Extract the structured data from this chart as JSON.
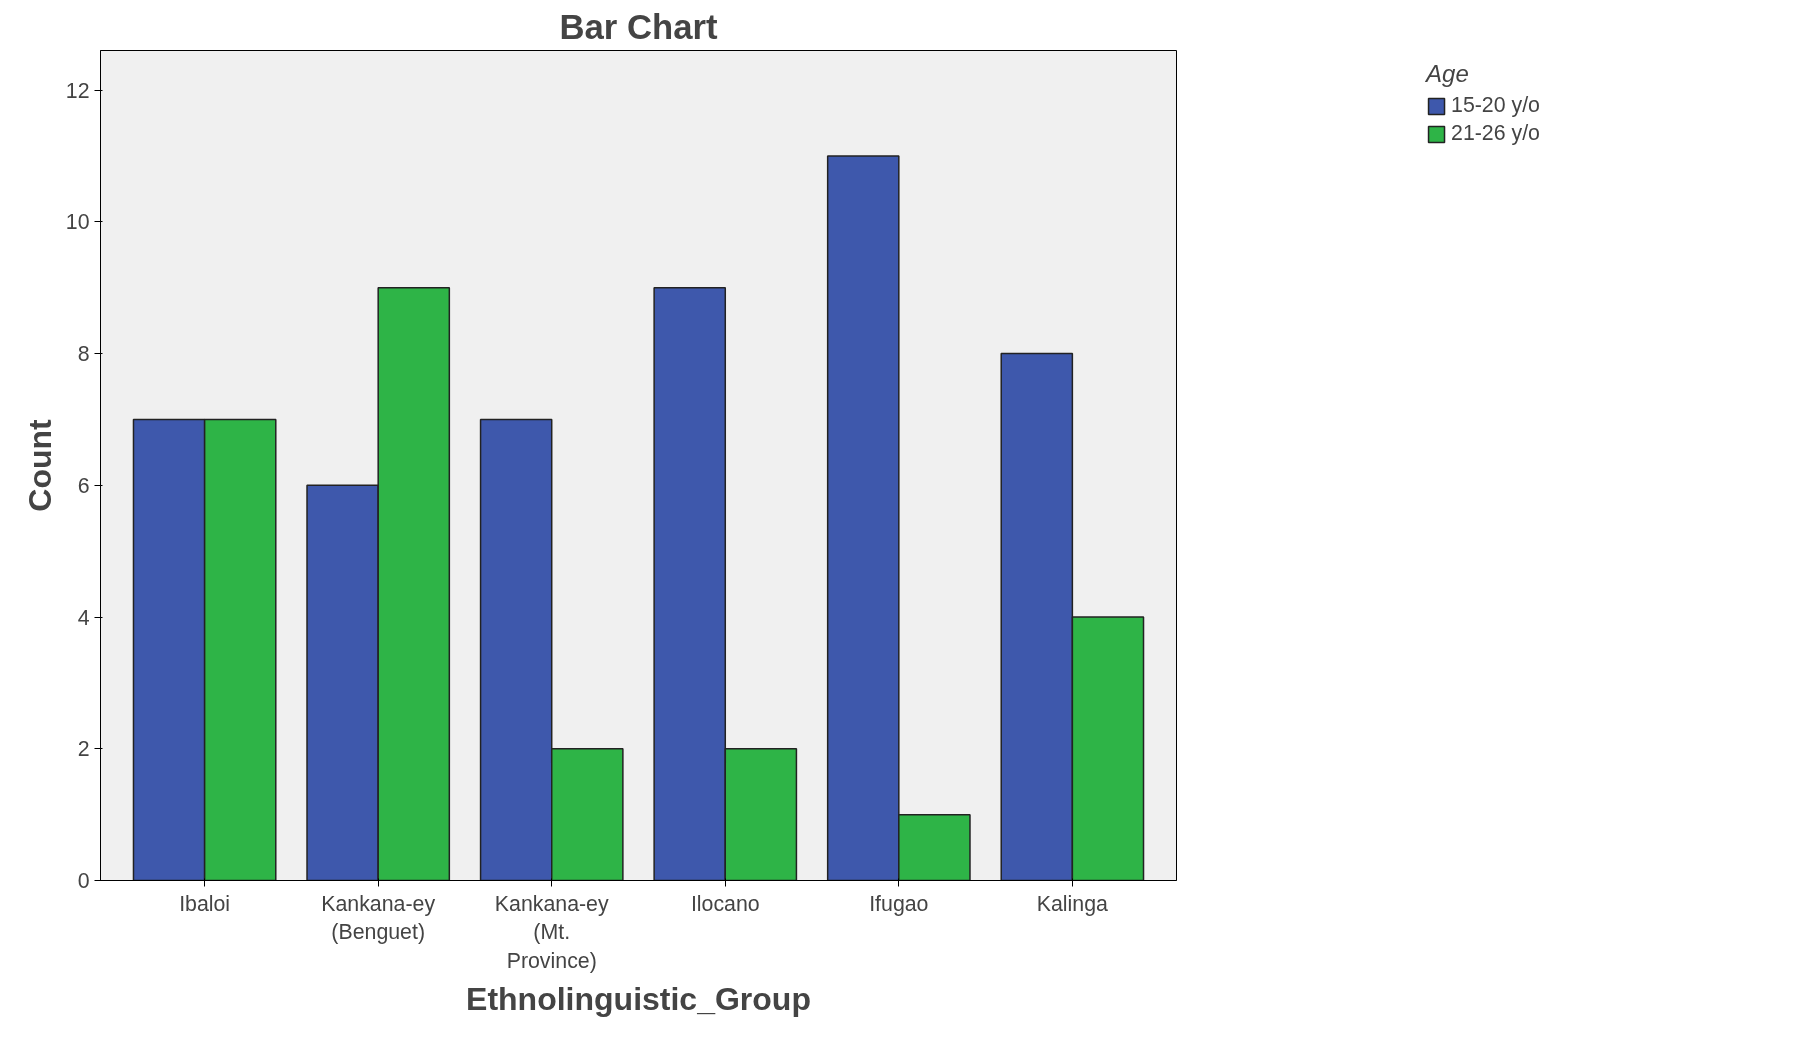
{
  "chart_data": {
    "type": "bar",
    "title": "Bar Chart",
    "xlabel": "Ethnolinguistic_Group",
    "ylabel": "Count",
    "categories": [
      "Ibaloi",
      "Kankana-ey\n(Benguet)",
      "Kankana-ey\n(Mt.\nProvince)",
      "Ilocano",
      "Ifugao",
      "Kalinga"
    ],
    "series": [
      {
        "name": "15-20 y/o",
        "color": "#3e58ac",
        "values": [
          7,
          6,
          7,
          9,
          11,
          8
        ]
      },
      {
        "name": "21-26 y/o",
        "color": "#2eb447",
        "values": [
          7,
          9,
          2,
          2,
          1,
          4
        ]
      }
    ],
    "legend_title": "Age",
    "legend": "top right",
    "ylim": [
      0,
      12.6
    ],
    "yticks": [
      0,
      2,
      4,
      6,
      8,
      10,
      12
    ],
    "grid": false
  }
}
